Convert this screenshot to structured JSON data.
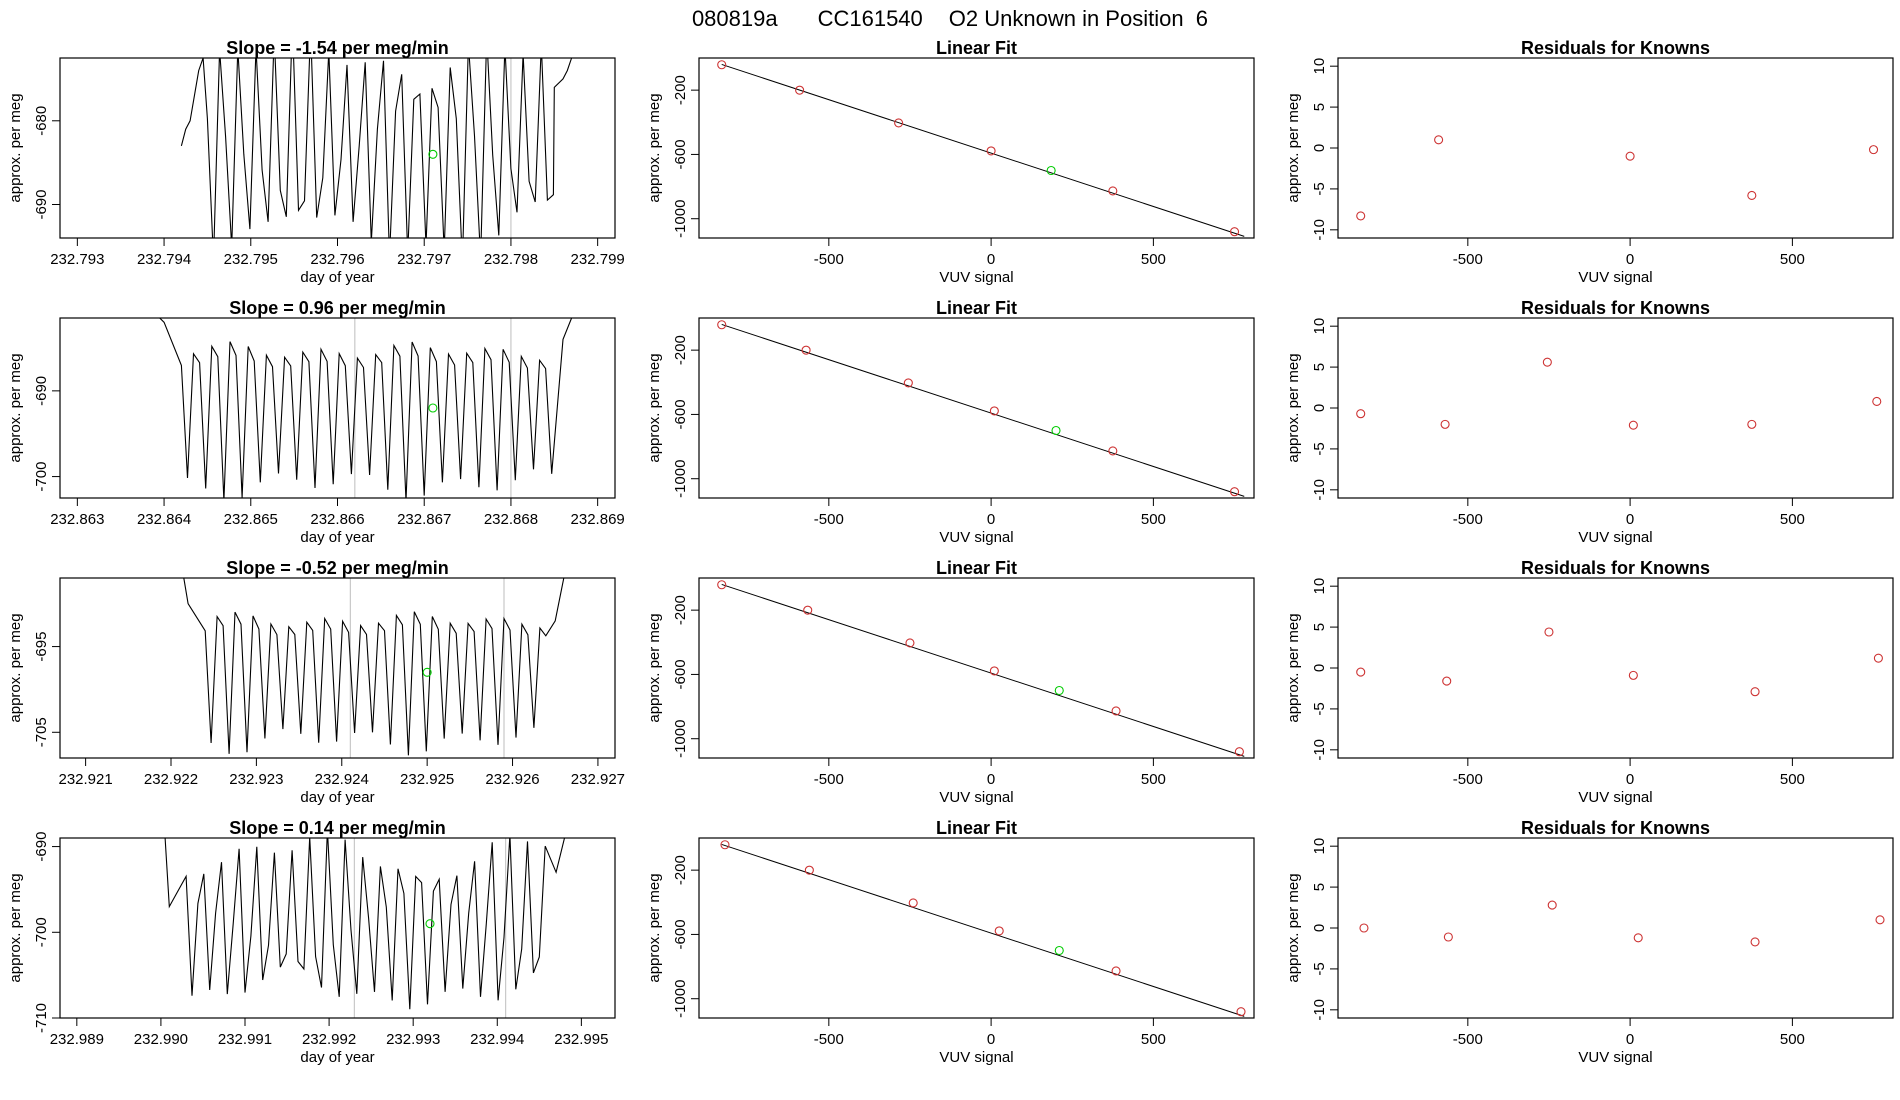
{
  "page_title": {
    "part1": "080819a",
    "part2": "CC161540",
    "part3": "O2 Unknown in Position  6"
  },
  "colors": {
    "known_point": "#cd3333",
    "unknown_point": "#00cc00",
    "line": "#000000",
    "marker_line": "#bebebe"
  },
  "chart_data": [
    {
      "type": "line",
      "title": "Slope =  -1.54  per meg/min",
      "xlabel": "day of year",
      "ylabel": "approx. per meg",
      "xlim": [
        232.7928,
        232.7992
      ],
      "ylim": [
        -694,
        -672.5
      ],
      "xticks": [
        "232.793",
        "232.794",
        "232.795",
        "232.796",
        "232.797",
        "232.798",
        "232.799"
      ],
      "yticks": [
        "-680",
        "-690"
      ],
      "trace": {
        "start": 232.7942,
        "end": 232.7987,
        "step": 7e-05,
        "period": 0.000205,
        "base": -683,
        "amp": 13,
        "lead": [
          [
            232.7942,
            -683
          ],
          [
            232.79425,
            -681
          ],
          [
            232.7943,
            -680
          ],
          [
            232.7944,
            -674
          ],
          [
            232.79445,
            -672.5
          ]
        ],
        "tail": [
          [
            232.7985,
            -676
          ],
          [
            232.7986,
            -675
          ],
          [
            232.79865,
            -674
          ],
          [
            232.7987,
            -672.5
          ]
        ]
      },
      "unknown_point": {
        "x": 232.7971,
        "y": -684
      },
      "marker_lines": [
        232.798
      ]
    },
    {
      "type": "scatter",
      "title": "Linear Fit",
      "xlabel": "VUV signal",
      "ylabel": "approx. per meg",
      "xlim": [
        -900,
        810
      ],
      "ylim": [
        -1120,
        0
      ],
      "xticks": [
        "-500",
        "0",
        "500"
      ],
      "yticks": [
        "-200",
        "-600",
        "-1000"
      ],
      "fit_line": {
        "x": [
          -830,
          780
        ],
        "y": [
          -40,
          -1110
        ]
      },
      "knowns": {
        "x": [
          -830,
          -590,
          -285,
          0,
          375,
          750
        ],
        "y": [
          -42,
          -200,
          -404,
          -578,
          -827,
          -1081
        ]
      },
      "unknown": {
        "x": 185,
        "y": -700
      }
    },
    {
      "type": "scatter",
      "title": "Residuals for Knowns",
      "xlabel": "VUV signal",
      "ylabel": "approx. per meg",
      "xlim": [
        -900,
        810
      ],
      "ylim": [
        -11,
        11
      ],
      "xticks": [
        "-500",
        "0",
        "500"
      ],
      "yticks": [
        "10",
        "5",
        "0",
        "-5",
        "-10"
      ],
      "knowns": {
        "x": [
          -830,
          -590,
          0,
          375,
          750
        ],
        "y": [
          -8.3,
          1,
          -1,
          -5.8,
          -0.2
        ]
      }
    },
    {
      "type": "line",
      "title": "Slope =  0.96  per meg/min",
      "xlabel": "day of year",
      "ylabel": "approx. per meg",
      "xlim": [
        232.8628,
        232.8692
      ],
      "ylim": [
        -702.5,
        -681.5
      ],
      "xticks": [
        "232.863",
        "232.864",
        "232.865",
        "232.866",
        "232.867",
        "232.868",
        "232.869"
      ],
      "yticks": [
        "-690",
        "-700"
      ],
      "trace": {
        "start": 232.8639,
        "end": 232.8687,
        "step": 7e-05,
        "period": 0.00021,
        "base": -691,
        "amp": 10,
        "lead": [
          [
            232.86395,
            -681.5
          ],
          [
            232.864,
            -682
          ]
        ],
        "tail": [
          [
            232.8686,
            -684
          ],
          [
            232.8687,
            -681.5
          ]
        ]
      },
      "unknown_point": {
        "x": 232.8671,
        "y": -692
      },
      "marker_lines": [
        232.8662,
        232.868
      ]
    },
    {
      "type": "scatter",
      "title": "Linear Fit",
      "xlabel": "VUV signal",
      "ylabel": "approx. per meg",
      "xlim": [
        -900,
        810
      ],
      "ylim": [
        -1120,
        0
      ],
      "xticks": [
        "-500",
        "0",
        "500"
      ],
      "yticks": [
        "-200",
        "-600",
        "-1000"
      ],
      "fit_line": {
        "x": [
          -830,
          780
        ],
        "y": [
          -40,
          -1110
        ]
      },
      "knowns": {
        "x": [
          -830,
          -570,
          -255,
          10,
          375,
          750
        ],
        "y": [
          -42,
          -200,
          -404,
          -578,
          -827,
          -1081
        ]
      },
      "unknown": {
        "x": 200,
        "y": -700
      }
    },
    {
      "type": "scatter",
      "title": "Residuals for Knowns",
      "xlabel": "VUV signal",
      "ylabel": "approx. per meg",
      "xlim": [
        -900,
        810
      ],
      "ylim": [
        -11,
        11
      ],
      "xticks": [
        "-500",
        "0",
        "500"
      ],
      "yticks": [
        "10",
        "5",
        "0",
        "-5",
        "-10"
      ],
      "knowns": {
        "x": [
          -830,
          -570,
          -255,
          10,
          375,
          760
        ],
        "y": [
          -0.7,
          -2,
          5.6,
          -2.1,
          -2,
          0.8
        ]
      }
    },
    {
      "type": "line",
      "title": "Slope =  -0.52  per meg/min",
      "xlabel": "day of year",
      "ylabel": "approx. per meg",
      "xlim": [
        232.9207,
        232.9272
      ],
      "ylim": [
        -708,
        -687
      ],
      "xticks": [
        "232.921",
        "232.922",
        "232.923",
        "232.924",
        "232.925",
        "232.926",
        "232.927"
      ],
      "yticks": [
        "-695",
        "-705"
      ],
      "trace": {
        "start": 232.9221,
        "end": 232.9266,
        "step": 7e-05,
        "period": 0.00021,
        "base": -697,
        "amp": 9,
        "lead": [
          [
            232.92215,
            -687
          ],
          [
            232.9222,
            -690
          ]
        ],
        "tail": [
          [
            232.9265,
            -692
          ],
          [
            232.9266,
            -687
          ]
        ]
      },
      "unknown_point": {
        "x": 232.925,
        "y": -698
      },
      "marker_lines": [
        232.9241,
        232.9259
      ]
    },
    {
      "type": "scatter",
      "title": "Linear Fit",
      "xlabel": "VUV signal",
      "ylabel": "approx. per meg",
      "xlim": [
        -900,
        810
      ],
      "ylim": [
        -1120,
        0
      ],
      "xticks": [
        "-500",
        "0",
        "500"
      ],
      "yticks": [
        "-200",
        "-600",
        "-1000"
      ],
      "fit_line": {
        "x": [
          -830,
          780
        ],
        "y": [
          -40,
          -1110
        ]
      },
      "knowns": {
        "x": [
          -830,
          -565,
          -250,
          10,
          385,
          765
        ],
        "y": [
          -42,
          -200,
          -404,
          -578,
          -827,
          -1081
        ]
      },
      "unknown": {
        "x": 210,
        "y": -700
      }
    },
    {
      "type": "scatter",
      "title": "Residuals for Knowns",
      "xlabel": "VUV signal",
      "ylabel": "approx. per meg",
      "xlim": [
        -900,
        810
      ],
      "ylim": [
        -11,
        11
      ],
      "xticks": [
        "-500",
        "0",
        "500"
      ],
      "yticks": [
        "10",
        "5",
        "0",
        "-5",
        "-10"
      ],
      "knowns": {
        "x": [
          -830,
          -565,
          -250,
          10,
          385,
          765
        ],
        "y": [
          -0.5,
          -1.6,
          4.4,
          -0.9,
          -2.9,
          1.2
        ]
      }
    },
    {
      "type": "line",
      "title": "Slope =  0.14  per meg/min",
      "xlabel": "day of year",
      "ylabel": "approx. per meg",
      "xlim": [
        232.9888,
        232.9954
      ],
      "ylim": [
        -710,
        -689
      ],
      "xticks": [
        "232.989",
        "232.990",
        "232.991",
        "232.992",
        "232.993",
        "232.994",
        "232.995"
      ],
      "yticks": [
        "-690",
        "-700",
        "-710"
      ],
      "trace": {
        "start": 232.99,
        "end": 232.9948,
        "step": 7e-05,
        "period": 0.000215,
        "base": -699,
        "amp": 9.5,
        "lead": [
          [
            232.99005,
            -689
          ],
          [
            232.9901,
            -697
          ]
        ],
        "tail": [
          [
            232.9947,
            -693
          ],
          [
            232.9948,
            -689
          ]
        ]
      },
      "unknown_point": {
        "x": 232.9932,
        "y": -699
      },
      "marker_lines": [
        232.9923,
        232.9941
      ]
    },
    {
      "type": "scatter",
      "title": "Linear Fit",
      "xlabel": "VUV signal",
      "ylabel": "approx. per meg",
      "xlim": [
        -900,
        810
      ],
      "ylim": [
        -1120,
        0
      ],
      "xticks": [
        "-500",
        "0",
        "500"
      ],
      "yticks": [
        "-200",
        "-600",
        "-1000"
      ],
      "fit_line": {
        "x": [
          -830,
          780
        ],
        "y": [
          -40,
          -1110
        ]
      },
      "knowns": {
        "x": [
          -820,
          -560,
          -240,
          25,
          385,
          770
        ],
        "y": [
          -42,
          -200,
          -404,
          -578,
          -827,
          -1081
        ]
      },
      "unknown": {
        "x": 210,
        "y": -700
      }
    },
    {
      "type": "scatter",
      "title": "Residuals for Knowns",
      "xlabel": "VUV signal",
      "ylabel": "approx. per meg",
      "xlim": [
        -900,
        810
      ],
      "ylim": [
        -11,
        11
      ],
      "xticks": [
        "-500",
        "0",
        "500"
      ],
      "yticks": [
        "10",
        "5",
        "0",
        "-5",
        "-10"
      ],
      "knowns": {
        "x": [
          -820,
          -560,
          -240,
          25,
          385,
          770
        ],
        "y": [
          0,
          -1.1,
          2.8,
          -1.2,
          -1.7,
          1
        ]
      }
    }
  ]
}
